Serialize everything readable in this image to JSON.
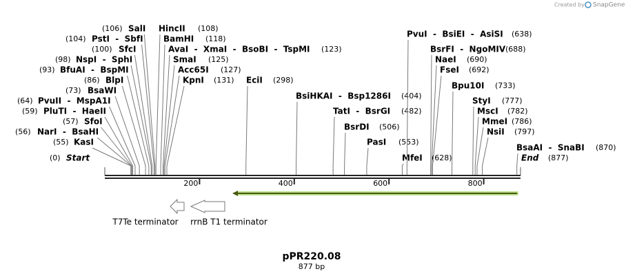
{
  "header": {
    "credit": "Created by",
    "brand": "SnapGene"
  },
  "sites": [
    {
      "name": "Start",
      "position": "(0)"
    },
    {
      "name": "KasI",
      "position": "(55)"
    },
    {
      "name": "NarI  -  BsaHI",
      "position": "(56)"
    },
    {
      "name": "SfoI",
      "position": "(57)"
    },
    {
      "name": "PluTI  -  HaeII",
      "position": "(59)"
    },
    {
      "name": "PvuII  -  MspA1I",
      "position": "(64)"
    },
    {
      "name": "BsaWI",
      "position": "(73)"
    },
    {
      "name": "BlpI",
      "position": "(86)"
    },
    {
      "name": "BfuAI  -  BspMI",
      "position": "(93)"
    },
    {
      "name": "NspI  -  SphI",
      "position": "(98)"
    },
    {
      "name": "SfcI",
      "position": "(100)"
    },
    {
      "name": "PstI  -  SbfI",
      "position": "(104)"
    },
    {
      "name": "SalI",
      "position": "(106)"
    },
    {
      "name": "HincII",
      "position": "(108)"
    },
    {
      "name": "BamHI",
      "position": "(118)"
    },
    {
      "name": "AvaI  -  XmaI  -  BsoBI  -  TspMI",
      "position": "(123)"
    },
    {
      "name": "SmaI",
      "position": "(125)"
    },
    {
      "name": "Acc65I",
      "position": "(127)"
    },
    {
      "name": "KpnI",
      "position": "(131)"
    },
    {
      "name": "EciI",
      "position": "(298)"
    },
    {
      "name": "BsiHKAI  -  Bsp1286I",
      "position": "(404)"
    },
    {
      "name": "TatI  -  BsrGI",
      "position": "(482)"
    },
    {
      "name": "BsrDI",
      "position": "(506)"
    },
    {
      "name": "PasI",
      "position": "(553)"
    },
    {
      "name": "MfeI",
      "position": "(628)"
    },
    {
      "name": "PvuI  -  BsiEI  -  AsiSI",
      "position": "(638)"
    },
    {
      "name": "BsrFI  -  NgoMIV",
      "position": "(688)"
    },
    {
      "name": "NaeI",
      "position": "(690)"
    },
    {
      "name": "FseI",
      "position": "(692)"
    },
    {
      "name": "Bpu10I",
      "position": "(733)"
    },
    {
      "name": "StyI",
      "position": "(777)"
    },
    {
      "name": "MscI",
      "position": "(782)"
    },
    {
      "name": "MmeI",
      "position": "(786)"
    },
    {
      "name": "NsiI",
      "position": "(797)"
    },
    {
      "name": "BsaAI  -  SnaBI",
      "position": "(870)"
    },
    {
      "name": "End",
      "position": "(877)"
    }
  ],
  "scale": {
    "ticks": [
      "200",
      "400",
      "600",
      "800"
    ]
  },
  "features": [
    {
      "label": "T7Te terminator"
    },
    {
      "label": "rrnB T1 terminator"
    }
  ],
  "footer": {
    "title": "pPR220.08",
    "length": "877 bp"
  }
}
